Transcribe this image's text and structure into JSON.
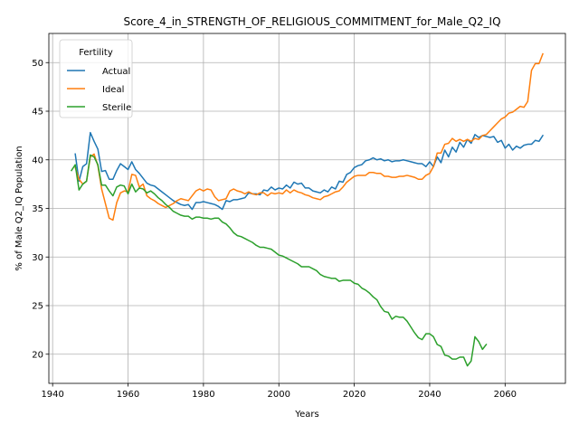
{
  "chart_data": {
    "type": "line",
    "title": "Score_4_in_STRENGTH_OF_RELIGIOUS_COMMITMENT_for_Male_Q2_IQ",
    "xlabel": "Years",
    "ylabel": "% of Male Q2_IQ Population",
    "xlim": [
      1939,
      2076
    ],
    "ylim": [
      17,
      53
    ],
    "xticks": [
      1940,
      1960,
      1980,
      2000,
      2020,
      2040,
      2060
    ],
    "yticks": [
      20,
      25,
      30,
      35,
      40,
      45,
      50
    ],
    "grid": true,
    "legend": {
      "title": "Fertility",
      "position": "top-left"
    },
    "series": [
      {
        "name": "Actual",
        "color": "#1f77b4",
        "x": [
          1946,
          1947,
          1948,
          1949,
          1950,
          1951,
          1952,
          1953,
          1954,
          1955,
          1956,
          1957,
          1958,
          1959,
          1960,
          1961,
          1962,
          1963,
          1964,
          1965,
          1966,
          1967,
          1968,
          1969,
          1970,
          1971,
          1972,
          1973,
          1974,
          1975,
          1976,
          1977,
          1978,
          1979,
          1980,
          1981,
          1982,
          1983,
          1984,
          1985,
          1986,
          1987,
          1988,
          1989,
          1990,
          1991,
          1992,
          1993,
          1994,
          1995,
          1996,
          1997,
          1998,
          1999,
          2000,
          2001,
          2002,
          2003,
          2004,
          2005,
          2006,
          2007,
          2008,
          2009,
          2010,
          2011,
          2012,
          2013,
          2014,
          2015,
          2016,
          2017,
          2018,
          2019,
          2020,
          2021,
          2022,
          2023,
          2024,
          2025,
          2026,
          2027,
          2028,
          2029,
          2030,
          2031,
          2032,
          2033,
          2034,
          2035,
          2036,
          2037,
          2038,
          2039,
          2040,
          2041,
          2042,
          2043,
          2044,
          2045,
          2046,
          2047,
          2048,
          2049,
          2050,
          2051,
          2052,
          2053,
          2054,
          2055,
          2056,
          2057,
          2058,
          2059,
          2060,
          2061,
          2062,
          2063,
          2064,
          2065,
          2066,
          2067,
          2068,
          2069,
          2070
        ],
        "y": [
          40.6,
          37.8,
          39.3,
          39.6,
          42.8,
          41.9,
          41.1,
          38.8,
          38.9,
          38.0,
          38.0,
          38.9,
          39.6,
          39.3,
          39.0,
          39.8,
          39.0,
          38.6,
          38.1,
          37.6,
          37.4,
          37.3,
          37.0,
          36.7,
          36.4,
          36.1,
          35.8,
          35.6,
          35.4,
          35.3,
          35.4,
          34.9,
          35.6,
          35.6,
          35.7,
          35.6,
          35.5,
          35.4,
          35.2,
          34.9,
          35.8,
          35.7,
          35.9,
          35.9,
          36.0,
          36.1,
          36.6,
          36.5,
          36.5,
          36.4,
          36.9,
          36.8,
          37.2,
          36.9,
          37.1,
          37.0,
          37.4,
          37.1,
          37.7,
          37.5,
          37.6,
          37.1,
          37.1,
          36.8,
          36.7,
          36.6,
          36.9,
          36.7,
          37.2,
          37.0,
          37.8,
          37.7,
          38.5,
          38.7,
          39.2,
          39.4,
          39.5,
          39.9,
          40.0,
          40.2,
          40.0,
          40.1,
          39.9,
          40.0,
          39.8,
          39.9,
          39.9,
          40.0,
          39.9,
          39.8,
          39.7,
          39.6,
          39.6,
          39.3,
          39.8,
          39.3,
          40.3,
          39.7,
          41.0,
          40.3,
          41.3,
          40.8,
          41.8,
          41.3,
          42.1,
          41.7,
          42.6,
          42.3,
          42.5,
          42.4,
          42.3,
          42.4,
          41.8,
          42.0,
          41.2,
          41.6,
          41.0,
          41.4,
          41.2,
          41.5,
          41.6,
          41.6,
          42.0,
          41.9,
          42.5
        ]
      },
      {
        "name": "Ideal",
        "color": "#ff7f0e",
        "x": [
          1946,
          1947,
          1948,
          1949,
          1950,
          1951,
          1952,
          1953,
          1954,
          1955,
          1956,
          1957,
          1958,
          1959,
          1960,
          1961,
          1962,
          1963,
          1964,
          1965,
          1966,
          1967,
          1968,
          1969,
          1970,
          1971,
          1972,
          1973,
          1974,
          1975,
          1976,
          1977,
          1978,
          1979,
          1980,
          1981,
          1982,
          1983,
          1984,
          1985,
          1986,
          1987,
          1988,
          1989,
          1990,
          1991,
          1992,
          1993,
          1994,
          1995,
          1996,
          1997,
          1998,
          1999,
          2000,
          2001,
          2002,
          2003,
          2004,
          2005,
          2006,
          2007,
          2008,
          2009,
          2010,
          2011,
          2012,
          2013,
          2014,
          2015,
          2016,
          2017,
          2018,
          2019,
          2020,
          2021,
          2022,
          2023,
          2024,
          2025,
          2026,
          2027,
          2028,
          2029,
          2030,
          2031,
          2032,
          2033,
          2034,
          2035,
          2036,
          2037,
          2038,
          2039,
          2040,
          2041,
          2042,
          2043,
          2044,
          2045,
          2046,
          2047,
          2048,
          2049,
          2050,
          2051,
          2052,
          2053,
          2054,
          2055,
          2056,
          2057,
          2058,
          2059,
          2060,
          2061,
          2062,
          2063,
          2064,
          2065,
          2066,
          2067,
          2068,
          2069,
          2070
        ],
        "y": [
          39.2,
          38.0,
          37.5,
          37.8,
          40.3,
          40.6,
          39.4,
          37.0,
          35.5,
          34.0,
          33.8,
          35.6,
          36.6,
          36.8,
          36.7,
          38.5,
          38.4,
          37.2,
          37.5,
          36.3,
          36.0,
          35.8,
          35.5,
          35.3,
          35.1,
          35.3,
          35.5,
          35.8,
          36.0,
          35.9,
          35.8,
          36.3,
          36.8,
          37.0,
          36.8,
          37.0,
          36.9,
          36.2,
          35.8,
          35.9,
          36.0,
          36.8,
          37.0,
          36.8,
          36.7,
          36.5,
          36.7,
          36.5,
          36.4,
          36.6,
          36.6,
          36.3,
          36.6,
          36.5,
          36.6,
          36.5,
          36.9,
          36.6,
          36.9,
          36.7,
          36.6,
          36.4,
          36.3,
          36.1,
          36.0,
          35.9,
          36.2,
          36.3,
          36.5,
          36.7,
          36.8,
          37.2,
          37.7,
          38.0,
          38.3,
          38.4,
          38.4,
          38.4,
          38.7,
          38.7,
          38.6,
          38.6,
          38.3,
          38.3,
          38.2,
          38.2,
          38.3,
          38.3,
          38.4,
          38.3,
          38.2,
          38.0,
          38.0,
          38.4,
          38.6,
          39.3,
          40.7,
          40.7,
          41.6,
          41.7,
          42.2,
          41.9,
          42.1,
          41.9,
          42.1,
          41.9,
          42.2,
          42.1,
          42.5,
          42.6,
          43.0,
          43.4,
          43.8,
          44.2,
          44.4,
          44.8,
          44.9,
          45.2,
          45.5,
          45.4,
          46.0,
          49.2,
          49.9,
          49.9,
          50.9
        ]
      },
      {
        "name": "Sterile",
        "color": "#2ca02c",
        "x": [
          1945,
          1946,
          1947,
          1948,
          1949,
          1950,
          1951,
          1952,
          1953,
          1954,
          1955,
          1956,
          1957,
          1958,
          1959,
          1960,
          1961,
          1962,
          1963,
          1964,
          1965,
          1966,
          1967,
          1968,
          1969,
          1970,
          1971,
          1972,
          1973,
          1974,
          1975,
          1976,
          1977,
          1978,
          1979,
          1980,
          1981,
          1982,
          1983,
          1984,
          1985,
          1986,
          1987,
          1988,
          1989,
          1990,
          1991,
          1992,
          1993,
          1994,
          1995,
          1996,
          1997,
          1998,
          1999,
          2000,
          2001,
          2002,
          2003,
          2004,
          2005,
          2006,
          2007,
          2008,
          2009,
          2010,
          2011,
          2012,
          2013,
          2014,
          2015,
          2016,
          2017,
          2018,
          2019,
          2020,
          2021,
          2022,
          2023,
          2024,
          2025,
          2026,
          2027,
          2028,
          2029,
          2030,
          2031,
          2032,
          2033,
          2034,
          2035,
          2036,
          2037,
          2038,
          2039,
          2040,
          2041,
          2042,
          2043,
          2044,
          2045,
          2046,
          2047,
          2048,
          2049,
          2050,
          2051,
          2052,
          2053,
          2054,
          2055
        ],
        "y": [
          38.9,
          39.5,
          36.9,
          37.5,
          37.8,
          40.5,
          40.3,
          39.5,
          37.4,
          37.4,
          36.8,
          36.3,
          37.2,
          37.4,
          37.3,
          36.5,
          37.5,
          36.7,
          37.1,
          37.0,
          36.6,
          36.8,
          36.5,
          36.1,
          35.8,
          35.4,
          35.1,
          34.7,
          34.5,
          34.3,
          34.2,
          34.2,
          33.9,
          34.1,
          34.1,
          34.0,
          34.0,
          33.9,
          34.0,
          34.0,
          33.6,
          33.4,
          33.0,
          32.5,
          32.2,
          32.1,
          31.9,
          31.7,
          31.5,
          31.2,
          31.0,
          31.0,
          30.9,
          30.8,
          30.5,
          30.2,
          30.1,
          29.9,
          29.7,
          29.5,
          29.3,
          29.0,
          29.0,
          29.0,
          28.8,
          28.6,
          28.2,
          28.0,
          27.9,
          27.8,
          27.8,
          27.5,
          27.6,
          27.6,
          27.6,
          27.3,
          27.2,
          26.8,
          26.6,
          26.3,
          25.9,
          25.6,
          24.9,
          24.4,
          24.3,
          23.6,
          23.9,
          23.8,
          23.8,
          23.4,
          22.8,
          22.2,
          21.7,
          21.5,
          22.1,
          22.1,
          21.8,
          21.0,
          20.8,
          19.9,
          19.8,
          19.5,
          19.5,
          19.7,
          19.7,
          18.8,
          19.3,
          21.8,
          21.3,
          20.5,
          21.0
        ]
      }
    ]
  }
}
